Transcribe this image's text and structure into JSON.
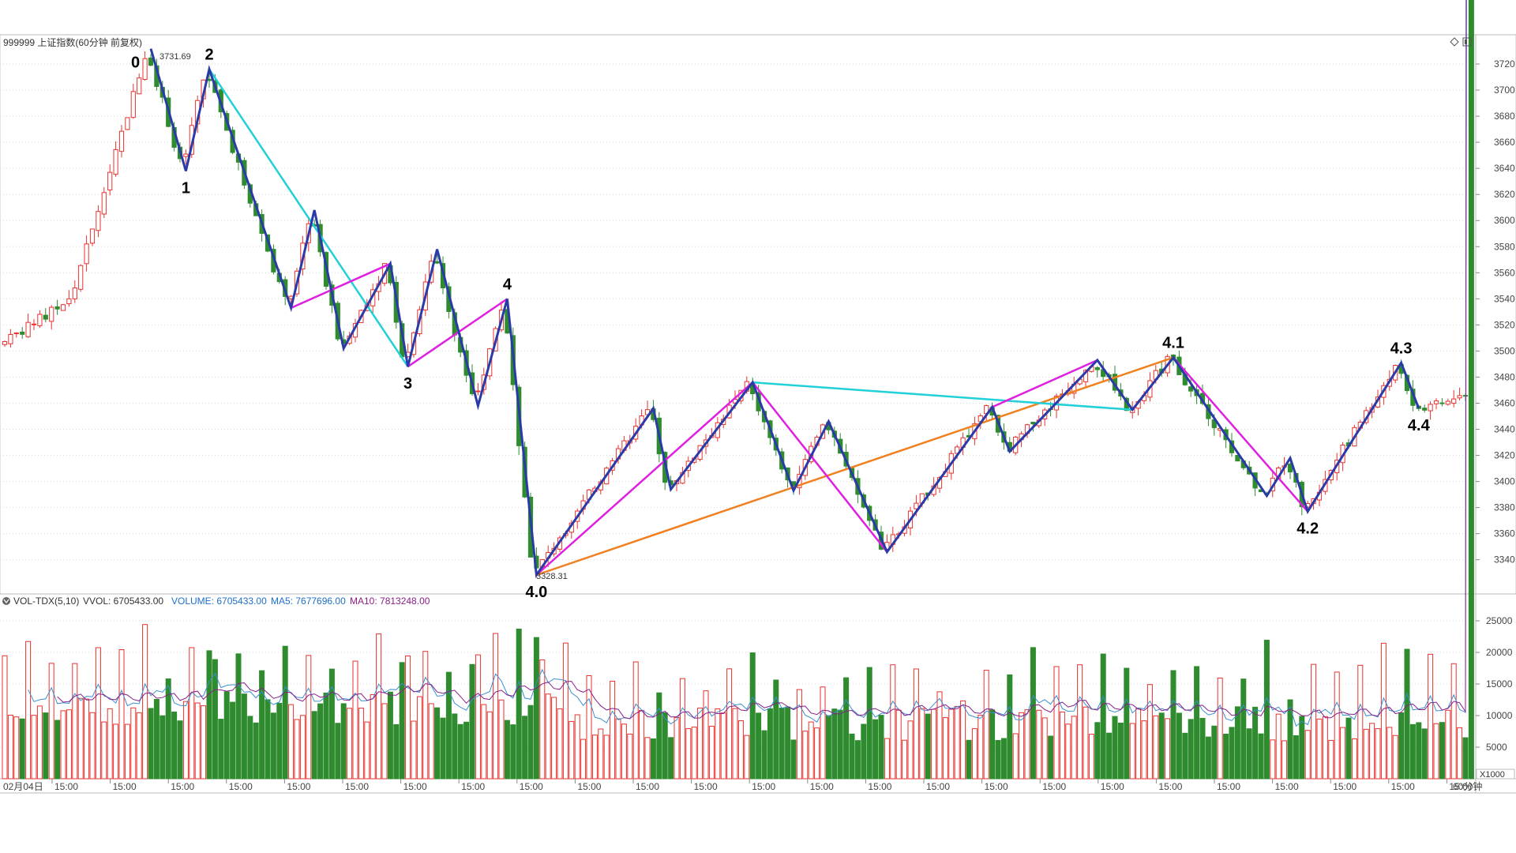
{
  "header": {
    "title": "999999 上证指数(60分钟 前复权)",
    "controls": [
      "diamond-icon",
      "panel-toggle-icon"
    ]
  },
  "volume_header": {
    "label": "VOL-TDX(5,10)",
    "vvol": "VVOL: 6705433.00",
    "volume": "VOLUME: 6705433.00",
    "ma5": "MA5: 7677696.00",
    "ma10": "MA10: 7813248.00"
  },
  "colors": {
    "up": "#e8322f",
    "down": "#2e8b2e",
    "wave_main": "#2a3ba8",
    "magenta": "#e020e0",
    "cyan": "#22d0d8",
    "orange": "#f08020",
    "ma5": "#3a8fd0",
    "ma10": "#8a1e8a",
    "grid": "#d8d8d8"
  },
  "price_annotations": {
    "high": "3731.69",
    "low": "3328.31"
  },
  "x_axis": {
    "first_label": "02月04日",
    "labels": [
      "15:00",
      "15:00",
      "15:00",
      "15:00",
      "15:00",
      "15:00",
      "15:00",
      "15:00",
      "15:00",
      "15:00",
      "15:00",
      "15:00",
      "15:00",
      "15:00",
      "15:00",
      "15:00",
      "15:00",
      "15:00",
      "15:00",
      "15:00",
      "15:00",
      "15:00",
      "15:00",
      "15:00",
      "15:00"
    ],
    "period": "60分钟"
  },
  "volume_unit": "X1000",
  "chart_data": [
    {
      "type": "candlestick",
      "ylim": [
        3315,
        3740
      ],
      "yticks": [
        3340,
        3360,
        3380,
        3400,
        3420,
        3440,
        3460,
        3480,
        3500,
        3520,
        3540,
        3560,
        3580,
        3600,
        3620,
        3640,
        3660,
        3680,
        3700,
        3720
      ],
      "bars_per_day": 4,
      "pivots": [
        {
          "bar": 0,
          "price": 3505
        },
        {
          "bar": 12,
          "price": 3540
        },
        {
          "bar": 25,
          "price": 3731.69
        },
        {
          "bar": 31,
          "price": 3638
        },
        {
          "bar": 35,
          "price": 3716
        },
        {
          "bar": 49,
          "price": 3533
        },
        {
          "bar": 53,
          "price": 3608
        },
        {
          "bar": 58,
          "price": 3502
        },
        {
          "bar": 66,
          "price": 3567
        },
        {
          "bar": 69,
          "price": 3488
        },
        {
          "bar": 74,
          "price": 3578
        },
        {
          "bar": 81,
          "price": 3458
        },
        {
          "bar": 86,
          "price": 3540
        },
        {
          "bar": 91,
          "price": 3328.31
        },
        {
          "bar": 111,
          "price": 3456
        },
        {
          "bar": 114,
          "price": 3394
        },
        {
          "bar": 128,
          "price": 3476
        },
        {
          "bar": 135,
          "price": 3393
        },
        {
          "bar": 141,
          "price": 3446
        },
        {
          "bar": 151,
          "price": 3346
        },
        {
          "bar": 169,
          "price": 3457
        },
        {
          "bar": 172,
          "price": 3423
        },
        {
          "bar": 187,
          "price": 3493
        },
        {
          "bar": 193,
          "price": 3455
        },
        {
          "bar": 200,
          "price": 3495
        },
        {
          "bar": 216,
          "price": 3389
        },
        {
          "bar": 220,
          "price": 3418
        },
        {
          "bar": 223,
          "price": 3377
        },
        {
          "bar": 239,
          "price": 3491
        },
        {
          "bar": 242,
          "price": 3456
        },
        {
          "bar": 251,
          "price": 3465
        }
      ],
      "wave_labels": [
        {
          "text": "0",
          "bar": 24,
          "price": 3731.69,
          "pos": "left"
        },
        {
          "text": "1",
          "bar": 31,
          "price": 3638,
          "pos": "below"
        },
        {
          "text": "2",
          "bar": 35,
          "price": 3716,
          "pos": "above"
        },
        {
          "text": "3",
          "bar": 69,
          "price": 3488,
          "pos": "below"
        },
        {
          "text": "4",
          "bar": 86,
          "price": 3540,
          "pos": "above"
        },
        {
          "text": "4.0",
          "bar": 91,
          "price": 3328.31,
          "pos": "below"
        },
        {
          "text": "4.1",
          "bar": 200,
          "price": 3495,
          "pos": "above"
        },
        {
          "text": "4.2",
          "bar": 223,
          "price": 3377,
          "pos": "below"
        },
        {
          "text": "4.3",
          "bar": 239,
          "price": 3491,
          "pos": "above"
        },
        {
          "text": "4.4",
          "bar": 242,
          "price": 3456,
          "pos": "below"
        }
      ],
      "wave_lines": {
        "main": [
          [
            25,
            3731.69
          ],
          [
            31,
            3638
          ],
          [
            35,
            3716
          ],
          [
            49,
            3533
          ],
          [
            53,
            3608
          ],
          [
            58,
            3502
          ],
          [
            66,
            3567
          ],
          [
            69,
            3488
          ],
          [
            74,
            3578
          ],
          [
            81,
            3458
          ],
          [
            86,
            3540
          ],
          [
            91,
            3328.31
          ],
          [
            111,
            3456
          ],
          [
            114,
            3394
          ],
          [
            128,
            3476
          ],
          [
            135,
            3393
          ],
          [
            141,
            3446
          ],
          [
            151,
            3346
          ],
          [
            169,
            3457
          ],
          [
            172,
            3423
          ],
          [
            187,
            3493
          ],
          [
            193,
            3455
          ],
          [
            200,
            3495
          ],
          [
            216,
            3389
          ],
          [
            220,
            3418
          ],
          [
            223,
            3377
          ],
          [
            239,
            3491
          ],
          [
            242,
            3456
          ]
        ],
        "magenta": [
          [
            [
              49,
              3533
            ],
            [
              66,
              3567
            ]
          ],
          [
            [
              69,
              3488
            ],
            [
              86,
              3540
            ]
          ],
          [
            [
              91,
              3328.31
            ],
            [
              128,
              3476
            ],
            [
              151,
              3346
            ],
            [
              169,
              3457
            ],
            [
              187,
              3493
            ],
            [
              193,
              3455
            ],
            [
              200,
              3495
            ],
            [
              223,
              3377
            ]
          ]
        ],
        "cyan": [
          [
            [
              35,
              3716
            ],
            [
              69,
              3488
            ]
          ],
          [
            [
              128,
              3476
            ],
            [
              193,
              3455
            ]
          ]
        ],
        "orange": [
          [
            [
              91,
              3328.31
            ],
            [
              200,
              3495
            ]
          ]
        ]
      }
    },
    {
      "type": "bar",
      "name": "VOLUME",
      "unit": "X1000",
      "ylim": [
        0,
        27000
      ],
      "yticks": [
        5000,
        10000,
        15000,
        20000,
        25000
      ],
      "last_value": 6705.433,
      "ma5_last": 7677.696,
      "ma10_last": 7813.248
    }
  ]
}
